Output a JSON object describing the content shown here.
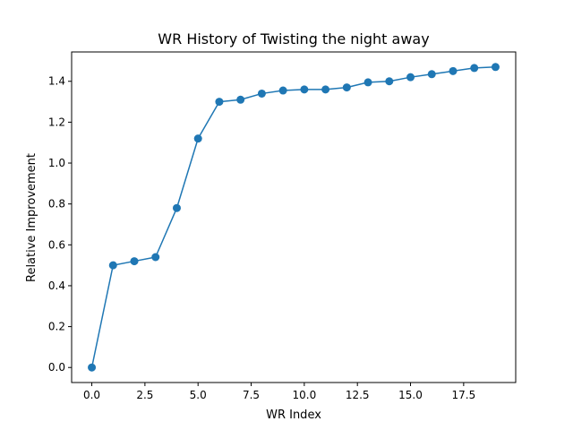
{
  "chart_data": {
    "type": "line",
    "title": "WR History of Twisting the night away",
    "xlabel": "WR Index",
    "ylabel": "Relative Improvement",
    "xlim": [
      -0.95,
      19.95
    ],
    "ylim": [
      -0.0735,
      1.5435
    ],
    "x_ticks": [
      0,
      2.5,
      5,
      7.5,
      10,
      12.5,
      15,
      17.5
    ],
    "x_tick_labels": [
      "0.0",
      "2.5",
      "5.0",
      "7.5",
      "10.0",
      "12.5",
      "15.0",
      "17.5"
    ],
    "y_ticks": [
      0,
      0.2,
      0.4,
      0.6,
      0.8,
      1.0,
      1.2,
      1.4
    ],
    "y_tick_labels": [
      "0.0",
      "0.2",
      "0.4",
      "0.6",
      "0.8",
      "1.0",
      "1.2",
      "1.4"
    ],
    "grid": false,
    "legend": "none",
    "series": [
      {
        "color": "#1f77b4",
        "marker": "circle",
        "x": [
          0,
          1,
          2,
          3,
          4,
          5,
          6,
          7,
          8,
          9,
          10,
          11,
          12,
          13,
          14,
          15,
          16,
          17,
          18,
          19
        ],
        "y": [
          0.0,
          0.5,
          0.52,
          0.54,
          0.78,
          1.12,
          1.3,
          1.31,
          1.34,
          1.355,
          1.36,
          1.36,
          1.37,
          1.395,
          1.4,
          1.42,
          1.435,
          1.45,
          1.465,
          1.47
        ]
      }
    ]
  }
}
